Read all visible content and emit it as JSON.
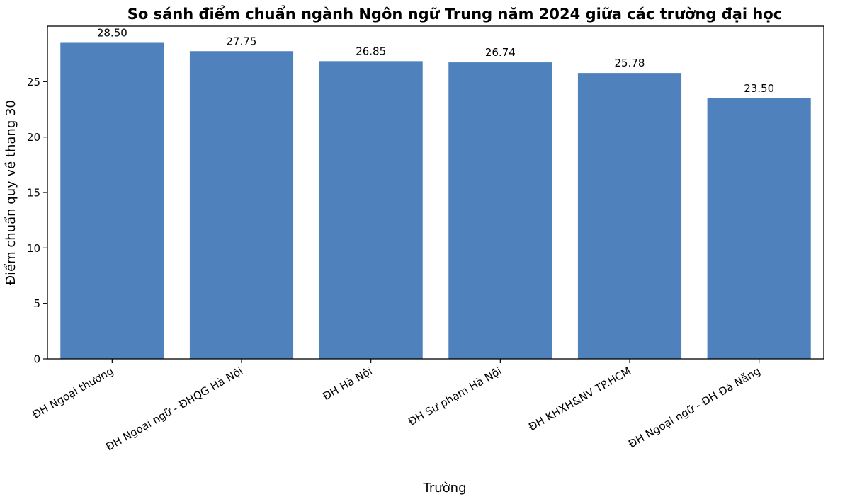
{
  "chart_data": {
    "type": "bar",
    "title": "So sánh điểm chuẩn ngành Ngôn ngữ Trung năm 2024 giữa các trường đại học",
    "xlabel": "Trường",
    "ylabel": "Điểm chuẩn quy về thang 30",
    "categories": [
      "ĐH Ngoại thương",
      "ĐH Ngoại ngữ - ĐHQG Hà Nội",
      "ĐH Hà Nội",
      "ĐH Sư phạm Hà Nội",
      "ĐH KHXH&NV TP.HCM",
      "ĐH Ngoại ngữ - ĐH Đà Nẵng"
    ],
    "values": [
      28.5,
      27.75,
      26.85,
      26.74,
      25.78,
      23.5
    ],
    "value_labels": [
      "28.50",
      "27.75",
      "26.85",
      "26.74",
      "25.78",
      "23.50"
    ],
    "yticks": [
      "0",
      "5",
      "10",
      "15",
      "20",
      "25"
    ],
    "ylim": [
      0,
      30
    ],
    "grid": false,
    "bar_color": "#4f81bd"
  }
}
